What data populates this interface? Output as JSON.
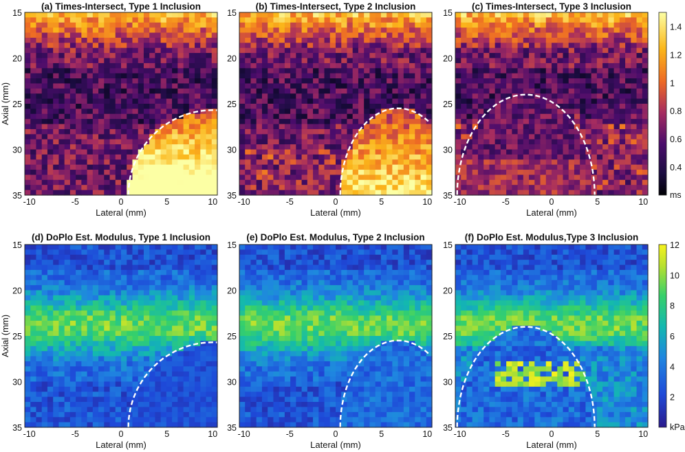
{
  "figure": {
    "colorbar_top_unit": "ms",
    "colorbar_bottom_unit": "kPa"
  },
  "chart_data": [
    {
      "id": "a",
      "type": "heatmap",
      "title": "(a) Times-Intersect, Type 1 Inclusion",
      "xlabel": "Lateral (mm)",
      "ylabel": "Axial (mm)",
      "xlim": [
        -10.5,
        10.5
      ],
      "ylim": [
        15,
        35
      ],
      "xticks": [
        "-10",
        "-5",
        "0",
        "5",
        "10"
      ],
      "xtick_values": [
        -10,
        -5,
        0,
        5,
        10
      ],
      "yticks": [
        "15",
        "20",
        "25",
        "30",
        "35"
      ],
      "ytick_values": [
        15,
        20,
        25,
        30,
        35
      ],
      "colormap": "inferno-like",
      "clim": [
        0.2,
        1.5
      ],
      "unit": "ms",
      "inclusion": {
        "cx": 10,
        "cy": 35,
        "rx": 9.2,
        "ry": 9.3
      },
      "seed": 11
    },
    {
      "id": "b",
      "type": "heatmap",
      "title": "(b) Times-Intersect, Type 2 Inclusion",
      "xlabel": "Lateral (mm)",
      "ylabel": "",
      "xlim": [
        -10.5,
        10.5
      ],
      "ylim": [
        15,
        35
      ],
      "xticks": [
        "-10",
        "-5",
        "0",
        "5",
        "10"
      ],
      "xtick_values": [
        -10,
        -5,
        0,
        5,
        10
      ],
      "yticks": [
        "15",
        "20",
        "25",
        "30",
        "35"
      ],
      "ytick_values": [
        15,
        20,
        25,
        30,
        35
      ],
      "colormap": "inferno-like",
      "clim": [
        0.2,
        1.5
      ],
      "unit": "ms",
      "inclusion": {
        "cx": 6.8,
        "cy": 35,
        "rx": 6.3,
        "ry": 9.5
      },
      "seed": 23
    },
    {
      "id": "c",
      "type": "heatmap",
      "title": "(c) Times-Intersect, Type 3 Inclusion",
      "xlabel": "Lateral (mm)",
      "ylabel": "",
      "xlim": [
        -10.5,
        10.5
      ],
      "ylim": [
        15,
        35
      ],
      "xticks": [
        "-10",
        "-5",
        "0",
        "5",
        "10"
      ],
      "xtick_values": [
        -10,
        -5,
        0,
        5,
        10
      ],
      "yticks": [
        "15",
        "20",
        "25",
        "30",
        "35"
      ],
      "ytick_values": [
        15,
        20,
        25,
        30,
        35
      ],
      "colormap": "inferno-like",
      "clim": [
        0.2,
        1.5
      ],
      "unit": "ms",
      "inclusion": {
        "cx": -2.8,
        "cy": 35,
        "rx": 7.5,
        "ry": 11
      },
      "seed": 37
    },
    {
      "id": "d",
      "type": "heatmap",
      "title": "(d) DoPlo Est. Modulus, Type 1 Inclusion",
      "xlabel": "Lateral (mm)",
      "ylabel": "Axial (mm)",
      "xlim": [
        -10.5,
        10.5
      ],
      "ylim": [
        15,
        35
      ],
      "xticks": [
        "-10",
        "-5",
        "0",
        "5",
        "10"
      ],
      "xtick_values": [
        -10,
        -5,
        0,
        5,
        10
      ],
      "yticks": [
        "15",
        "20",
        "25",
        "30",
        "35"
      ],
      "ytick_values": [
        15,
        20,
        25,
        30,
        35
      ],
      "colormap": "parula-like",
      "clim": [
        0,
        12
      ],
      "unit": "kPa",
      "inclusion": {
        "cx": 10,
        "cy": 35,
        "rx": 9.2,
        "ry": 9.3
      },
      "seed": 51
    },
    {
      "id": "e",
      "type": "heatmap",
      "title": "(e) DoPlo Est. Modulus, Type 2 Inclusion",
      "xlabel": "Lateral (mm)",
      "ylabel": "",
      "xlim": [
        -10.5,
        10.5
      ],
      "ylim": [
        15,
        35
      ],
      "xticks": [
        "-10",
        "-5",
        "0",
        "5",
        "10"
      ],
      "xtick_values": [
        -10,
        -5,
        0,
        5,
        10
      ],
      "yticks": [
        "15",
        "20",
        "25",
        "30",
        "35"
      ],
      "ytick_values": [
        15,
        20,
        25,
        30,
        35
      ],
      "colormap": "parula-like",
      "clim": [
        0,
        12
      ],
      "unit": "kPa",
      "inclusion": {
        "cx": 6.8,
        "cy": 35,
        "rx": 6.3,
        "ry": 9.5
      },
      "seed": 67
    },
    {
      "id": "f",
      "type": "heatmap",
      "title": "(f) DoPlo Est. Modulus,Type 3 Inclusion",
      "xlabel": "Lateral (mm)",
      "ylabel": "",
      "xlim": [
        -10.5,
        10.5
      ],
      "ylim": [
        15,
        35
      ],
      "xticks": [
        "-10",
        "-5",
        "0",
        "5",
        "10"
      ],
      "xtick_values": [
        -10,
        -5,
        0,
        5,
        10
      ],
      "yticks": [
        "15",
        "20",
        "25",
        "30",
        "35"
      ],
      "ytick_values": [
        15,
        20,
        25,
        30,
        35
      ],
      "colormap": "parula-like",
      "clim": [
        0,
        12
      ],
      "unit": "kPa",
      "inclusion": {
        "cx": -2.8,
        "cy": 35,
        "rx": 7.5,
        "ry": 11
      },
      "seed": 83
    }
  ],
  "colorbars": [
    {
      "id": "top",
      "colormap": "inferno-like",
      "range": [
        0.2,
        1.5
      ],
      "tick_values": [
        0.4,
        0.6,
        0.8,
        1.0,
        1.2,
        1.4
      ],
      "tick_labels": [
        "0.4",
        "0.6",
        "0.8",
        "1",
        "1.2",
        "1.4"
      ]
    },
    {
      "id": "bottom",
      "colormap": "parula-like",
      "range": [
        0,
        12
      ],
      "tick_values": [
        2,
        4,
        6,
        8,
        10,
        12
      ],
      "tick_labels": [
        "2",
        "4",
        "6",
        "8",
        "10",
        "12"
      ]
    }
  ]
}
